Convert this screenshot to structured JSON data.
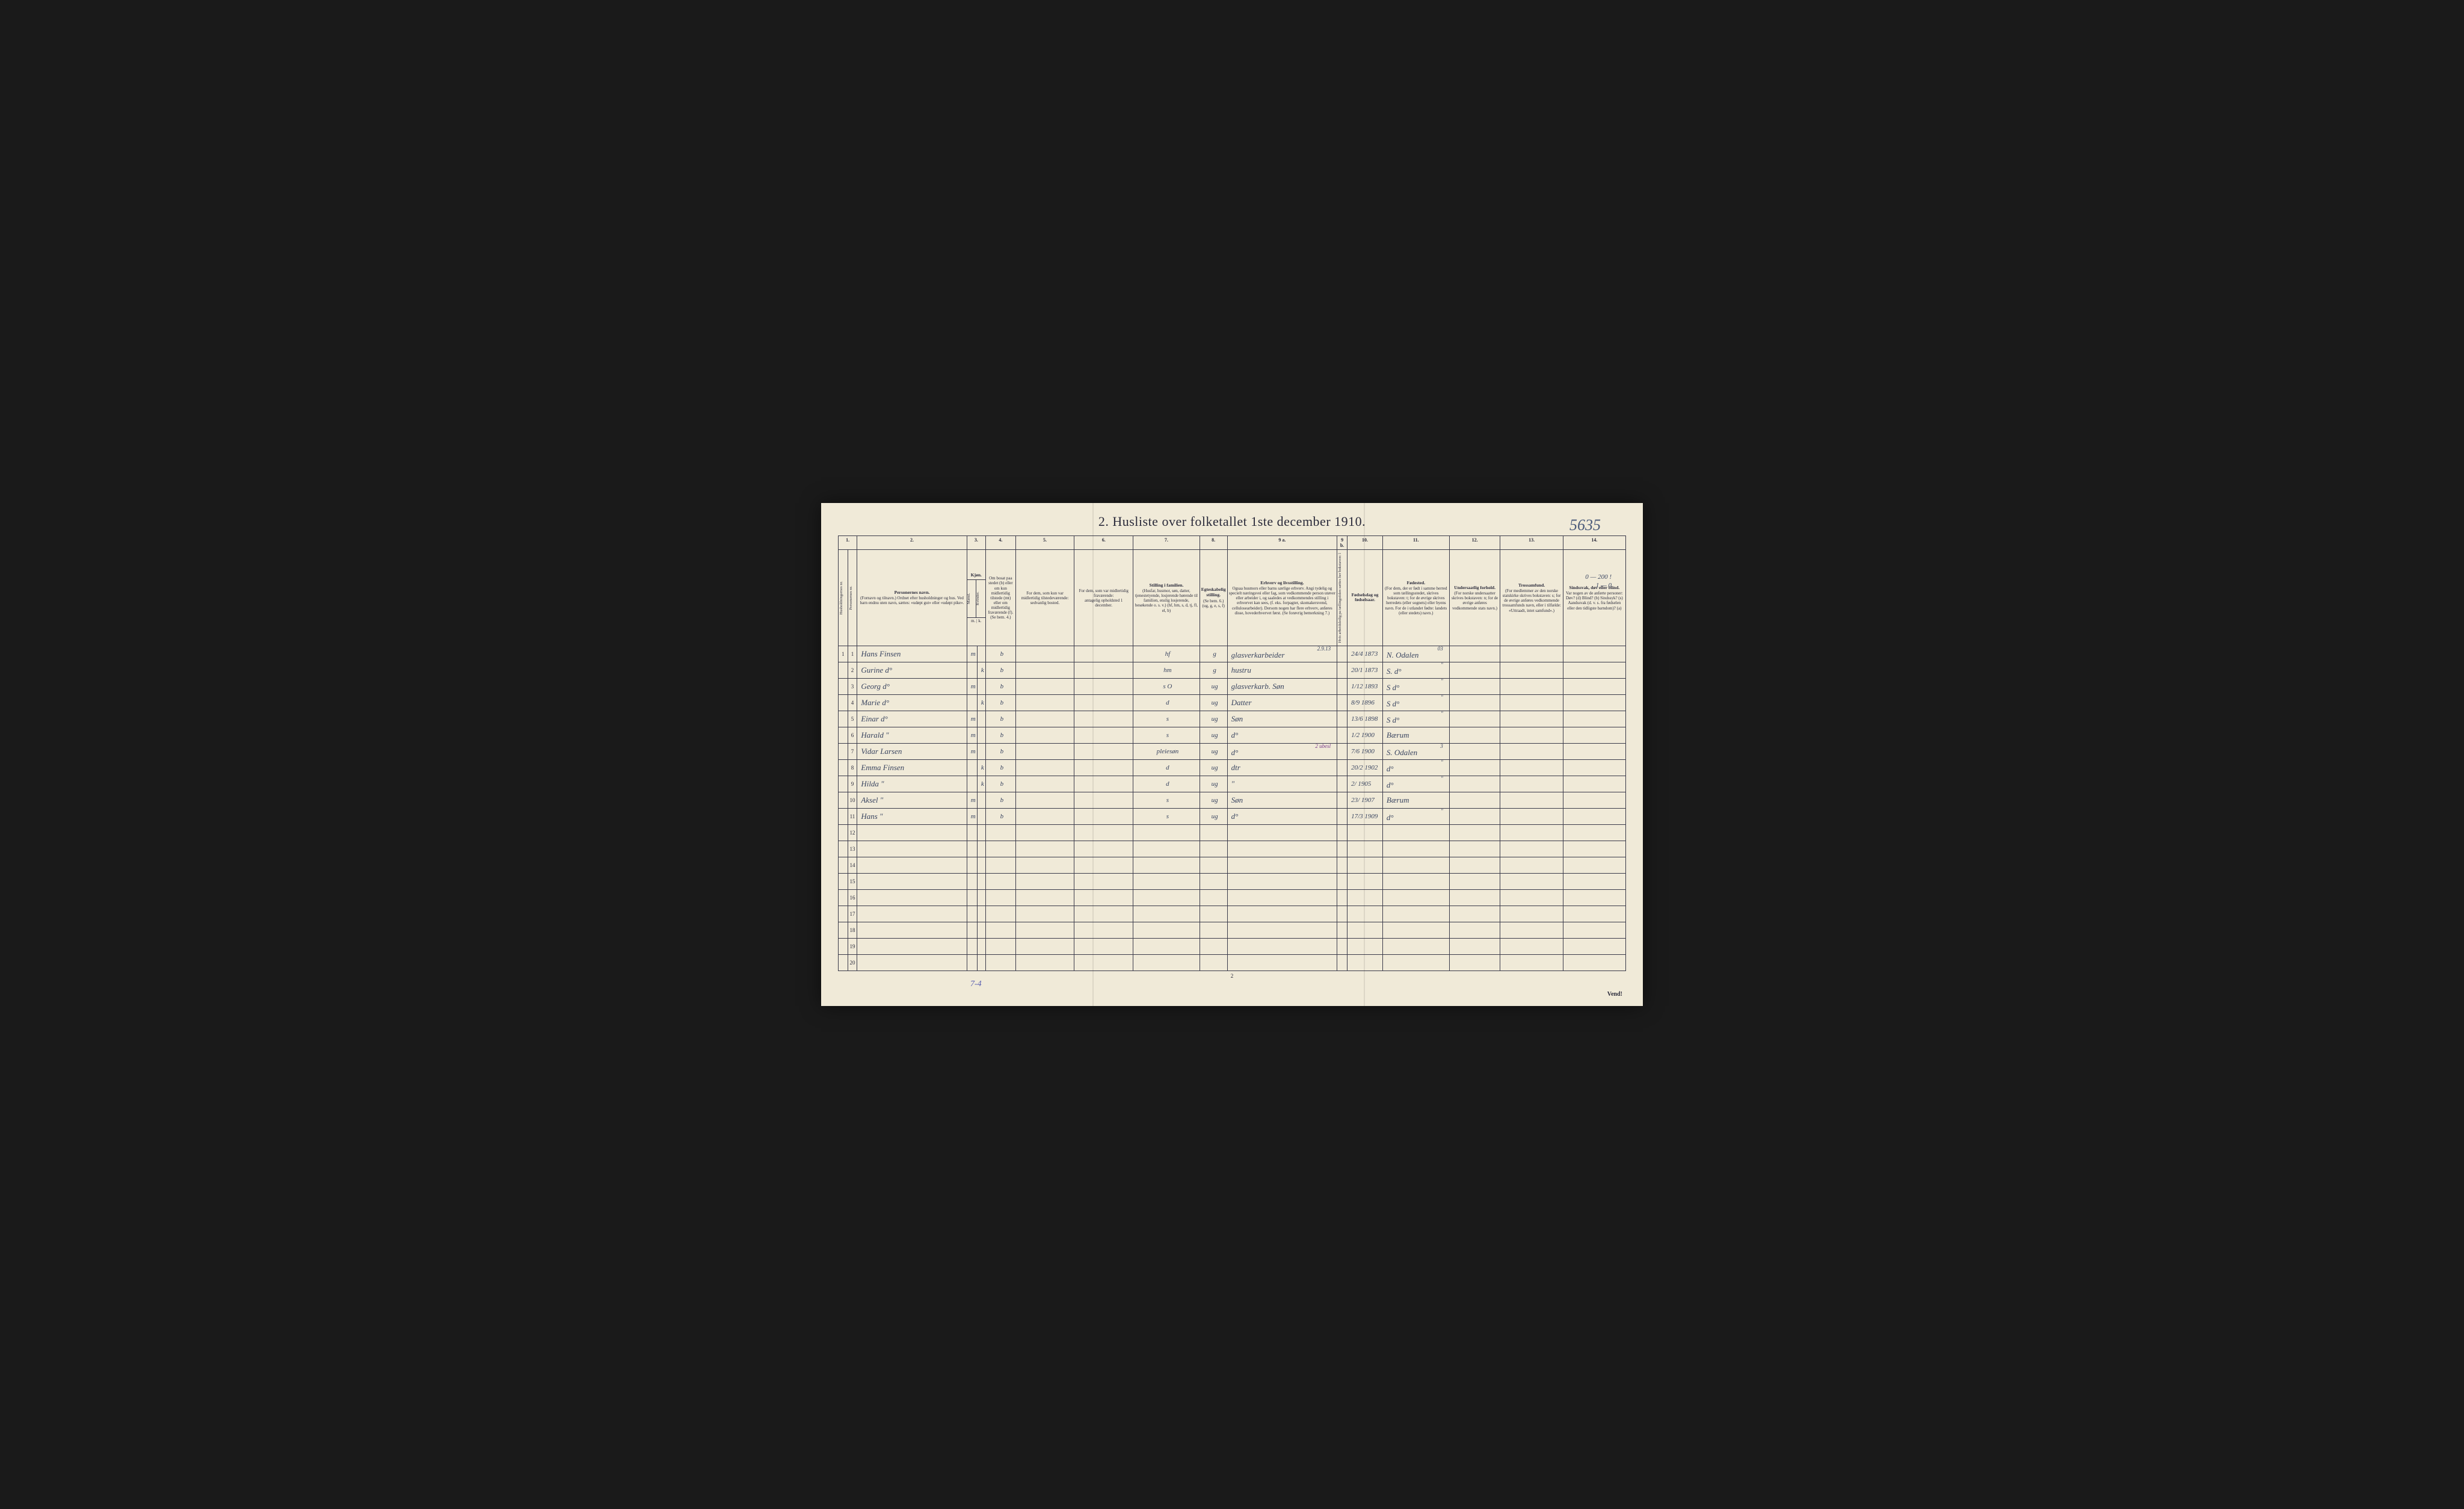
{
  "document": {
    "handwritten_corner": "5635",
    "title": "2. Husliste over folketallet 1ste december 1910.",
    "footer_page": "2",
    "vend": "Vend!",
    "bottom_annotation": "7-4",
    "top_right_hw_line1": "0 — 200 !",
    "top_right_hw_line2": "1 — 0"
  },
  "column_numbers": [
    "1.",
    "2.",
    "3.",
    "4.",
    "5.",
    "6.",
    "7.",
    "8.",
    "9 a.",
    "9 b.",
    "10.",
    "11.",
    "12.",
    "13.",
    "14."
  ],
  "headers": {
    "col1a": "Husholdningernes nr.",
    "col1b": "Personernes nr.",
    "col2_title": "Personernes navn.",
    "col2_sub": "(Fornavn og tilnavn.)\nOrdnet efter husholdninger og hus.\nVed barn endnu uten navn, sættes: «udøpt gut» eller «udøpt pike».",
    "col3_title": "Kjøn.",
    "col3_m": "Mænd.",
    "col3_k": "Kvinder.",
    "col3_mk": "m. | k.",
    "col4_title": "Om bosat paa stedet",
    "col4_sub": "(b) eller om kun midlertidig tilstede (mt) eller om midlertidig fraværende (f). (Se bem. 4.)",
    "col5_title": "For dem, som kun var midlertidig tilstedeværende:",
    "col5_sub": "sedvanlig bosted.",
    "col6_title": "For dem, som var midlertidig fraværende:",
    "col6_sub": "antagelig opholdsted 1 december.",
    "col7_title": "Stilling i familien.",
    "col7_sub": "(Husfar, husmor, søn, datter, tjenestetyende, losjerende hørende til familien, enslig losjerende, besøkende o. s. v.)\n(hf, hm, s, d, tj, fl, el, b)",
    "col8_title": "Egteskabelig stilling.",
    "col8_sub": "(Se bem. 6.)\n(ug, g, e, s, f)",
    "col9a_title": "Erhverv og livsstilling.",
    "col9a_sub": "Ogsaa husmors eller barns særlige erhverv. Angi tydelig og specielt næringsvei eller fag, som vedkommende person utøver eller arbeider i, og saaledes at vedkommendes stilling i erhvervet kan sees, (f. eks. forpagter, skomakersvend, cellulosearbeider). Dersom nogen har flere erhverv, anføres disse, hovederhvervet først. (Se forøvrig bemerkning 7.)",
    "col9b": "Hvis arbeidsledig pa tællingstiden sættes her bokstaven: l",
    "col10_title": "Fødselsdag og fødselsaar.",
    "col11_title": "Fødested.",
    "col11_sub": "(For dem, der er født i samme herred som tællingsstedet, skrives bokstaven: t; for de øvrige skrives herredets (eller sognets) eller byens navn. For de i utlandet fødte: landets (eller stedets) navn.)",
    "col12_title": "Undersaatlig forhold.",
    "col12_sub": "(For norske undersaatter skrives bokstaven: n; for de øvrige anføres vedkommende stats navn.)",
    "col13_title": "Trossamfund.",
    "col13_sub": "(For medlemmer av den norske statskirke skrives bokstaven: s; for de øvrige anføres vedkommende trossamfunds navn, eller i tilfælde: «Uttraadt, intet samfund».)",
    "col14_title": "Sindssvak, døv eller blind.",
    "col14_sub": "Var nogen av de anførte personer:\nDøv? (d)\nBlind? (b)\nSindssyk? (s)\nAandssvak (d. v. s. fra fødselen eller den tidligste barndom)? (a)"
  },
  "rows": [
    {
      "hh": "1",
      "pn": "1",
      "name": "Hans Finsen",
      "m": "m",
      "k": "",
      "bosat": "b",
      "col5": "",
      "col6": "",
      "stilling": "hf",
      "egt": "g",
      "erhverv": "glasverkarbeider",
      "note": "2.9.13",
      "dob": "24/4 1873",
      "fsted": "N. Odalen",
      "fsted_note": "03"
    },
    {
      "hh": "",
      "pn": "2",
      "name": "Gurine d°",
      "m": "",
      "k": "k",
      "bosat": "b",
      "col5": "",
      "col6": "",
      "stilling": "hm",
      "egt": "g",
      "erhverv": "hustru",
      "note": "",
      "dob": "20/1 1873",
      "fsted": "S. d°",
      "fsted_note": "\""
    },
    {
      "hh": "",
      "pn": "3",
      "name": "Georg d°",
      "m": "m",
      "k": "",
      "bosat": "b",
      "col5": "",
      "col6": "",
      "stilling": "s O",
      "egt": "ug",
      "erhverv": "glasverkarb. Søn",
      "note": "",
      "dob": "1/12 1893",
      "fsted": "S d°",
      "fsted_note": "\""
    },
    {
      "hh": "",
      "pn": "4",
      "name": "Marie d°",
      "m": "",
      "k": "k",
      "bosat": "b",
      "col5": "",
      "col6": "",
      "stilling": "d",
      "egt": "ug",
      "erhverv": "Datter",
      "note": "",
      "dob": "8/9 1896",
      "fsted": "S d°",
      "fsted_note": "\""
    },
    {
      "hh": "",
      "pn": "5",
      "name": "Einar d°",
      "m": "m",
      "k": "",
      "bosat": "b",
      "col5": "",
      "col6": "",
      "stilling": "s",
      "egt": "ug",
      "erhverv": "Søn",
      "note": "",
      "dob": "13/6 1898",
      "fsted": "S d°",
      "fsted_note": "\""
    },
    {
      "hh": "",
      "pn": "6",
      "name": "Harald \"",
      "m": "m",
      "k": "",
      "bosat": "b",
      "col5": "",
      "col6": "",
      "stilling": "s",
      "egt": "ug",
      "erhverv": "d°",
      "note": "",
      "dob": "1/2 1900",
      "fsted": "Bærum",
      "fsted_note": ""
    },
    {
      "hh": "",
      "pn": "7",
      "name": "Vidar Larsen",
      "m": "m",
      "k": "",
      "bosat": "b",
      "col5": "",
      "col6": "",
      "stilling": "pleiesøn",
      "egt": "ug",
      "erhverv": "d°",
      "note": "2 ubesl",
      "dob": "7/6 1900",
      "fsted": "S. Odalen",
      "fsted_note": "3"
    },
    {
      "hh": "",
      "pn": "8",
      "name": "Emma Finsen",
      "m": "",
      "k": "k",
      "bosat": "b",
      "col5": "",
      "col6": "",
      "stilling": "d",
      "egt": "ug",
      "erhverv": "dtr",
      "note": "",
      "dob": "20/2 1902",
      "fsted": "d°",
      "fsted_note": "\""
    },
    {
      "hh": "",
      "pn": "9",
      "name": "Hilda \"",
      "m": "",
      "k": "k",
      "bosat": "b",
      "col5": "",
      "col6": "",
      "stilling": "d",
      "egt": "ug",
      "erhverv": "\"",
      "note": "",
      "dob": "2/ 1905",
      "fsted": "d°",
      "fsted_note": "\""
    },
    {
      "hh": "",
      "pn": "10",
      "name": "Aksel \"",
      "m": "m",
      "k": "",
      "bosat": "b",
      "col5": "",
      "col6": "",
      "stilling": "s",
      "egt": "ug",
      "erhverv": "Søn",
      "note": "",
      "dob": "23/ 1907",
      "fsted": "Bærum",
      "fsted_note": ""
    },
    {
      "hh": "",
      "pn": "11",
      "name": "Hans \"",
      "m": "m",
      "k": "",
      "bosat": "b",
      "col5": "",
      "col6": "",
      "stilling": "s",
      "egt": "ug",
      "erhverv": "d°",
      "note": "",
      "dob": "17/3 1909",
      "fsted": "d°",
      "fsted_note": "\""
    },
    {
      "hh": "",
      "pn": "12",
      "name": "",
      "m": "",
      "k": "",
      "bosat": "",
      "col5": "",
      "col6": "",
      "stilling": "",
      "egt": "",
      "erhverv": "",
      "note": "",
      "dob": "",
      "fsted": "",
      "fsted_note": ""
    },
    {
      "hh": "",
      "pn": "13",
      "name": "",
      "m": "",
      "k": "",
      "bosat": "",
      "col5": "",
      "col6": "",
      "stilling": "",
      "egt": "",
      "erhverv": "",
      "note": "",
      "dob": "",
      "fsted": "",
      "fsted_note": ""
    },
    {
      "hh": "",
      "pn": "14",
      "name": "",
      "m": "",
      "k": "",
      "bosat": "",
      "col5": "",
      "col6": "",
      "stilling": "",
      "egt": "",
      "erhverv": "",
      "note": "",
      "dob": "",
      "fsted": "",
      "fsted_note": ""
    },
    {
      "hh": "",
      "pn": "15",
      "name": "",
      "m": "",
      "k": "",
      "bosat": "",
      "col5": "",
      "col6": "",
      "stilling": "",
      "egt": "",
      "erhverv": "",
      "note": "",
      "dob": "",
      "fsted": "",
      "fsted_note": ""
    },
    {
      "hh": "",
      "pn": "16",
      "name": "",
      "m": "",
      "k": "",
      "bosat": "",
      "col5": "",
      "col6": "",
      "stilling": "",
      "egt": "",
      "erhverv": "",
      "note": "",
      "dob": "",
      "fsted": "",
      "fsted_note": ""
    },
    {
      "hh": "",
      "pn": "17",
      "name": "",
      "m": "",
      "k": "",
      "bosat": "",
      "col5": "",
      "col6": "",
      "stilling": "",
      "egt": "",
      "erhverv": "",
      "note": "",
      "dob": "",
      "fsted": "",
      "fsted_note": ""
    },
    {
      "hh": "",
      "pn": "18",
      "name": "",
      "m": "",
      "k": "",
      "bosat": "",
      "col5": "",
      "col6": "",
      "stilling": "",
      "egt": "",
      "erhverv": "",
      "note": "",
      "dob": "",
      "fsted": "",
      "fsted_note": ""
    },
    {
      "hh": "",
      "pn": "19",
      "name": "",
      "m": "",
      "k": "",
      "bosat": "",
      "col5": "",
      "col6": "",
      "stilling": "",
      "egt": "",
      "erhverv": "",
      "note": "",
      "dob": "",
      "fsted": "",
      "fsted_note": ""
    },
    {
      "hh": "",
      "pn": "20",
      "name": "",
      "m": "",
      "k": "",
      "bosat": "",
      "col5": "",
      "col6": "",
      "stilling": "",
      "egt": "",
      "erhverv": "",
      "note": "",
      "dob": "",
      "fsted": "",
      "fsted_note": ""
    }
  ],
  "col_widths": {
    "hh": "1.2%",
    "pn": "1.2%",
    "name": "14%",
    "m": "1.1%",
    "k": "1.1%",
    "bosat": "3.8%",
    "col5": "7.5%",
    "col6": "7.5%",
    "stilling": "8.5%",
    "egt": "3.2%",
    "erhverv": "14%",
    "col9b": "1.3%",
    "dob": "4.5%",
    "fsted": "8.5%",
    "col12": "6.5%",
    "col13": "8%",
    "col14": "8%"
  },
  "colors": {
    "paper": "#f0ead8",
    "ink": "#2a2a3a",
    "handwriting": "#3a4560",
    "purple_ink": "#7a3a8a",
    "border": "#3a3a4a"
  }
}
